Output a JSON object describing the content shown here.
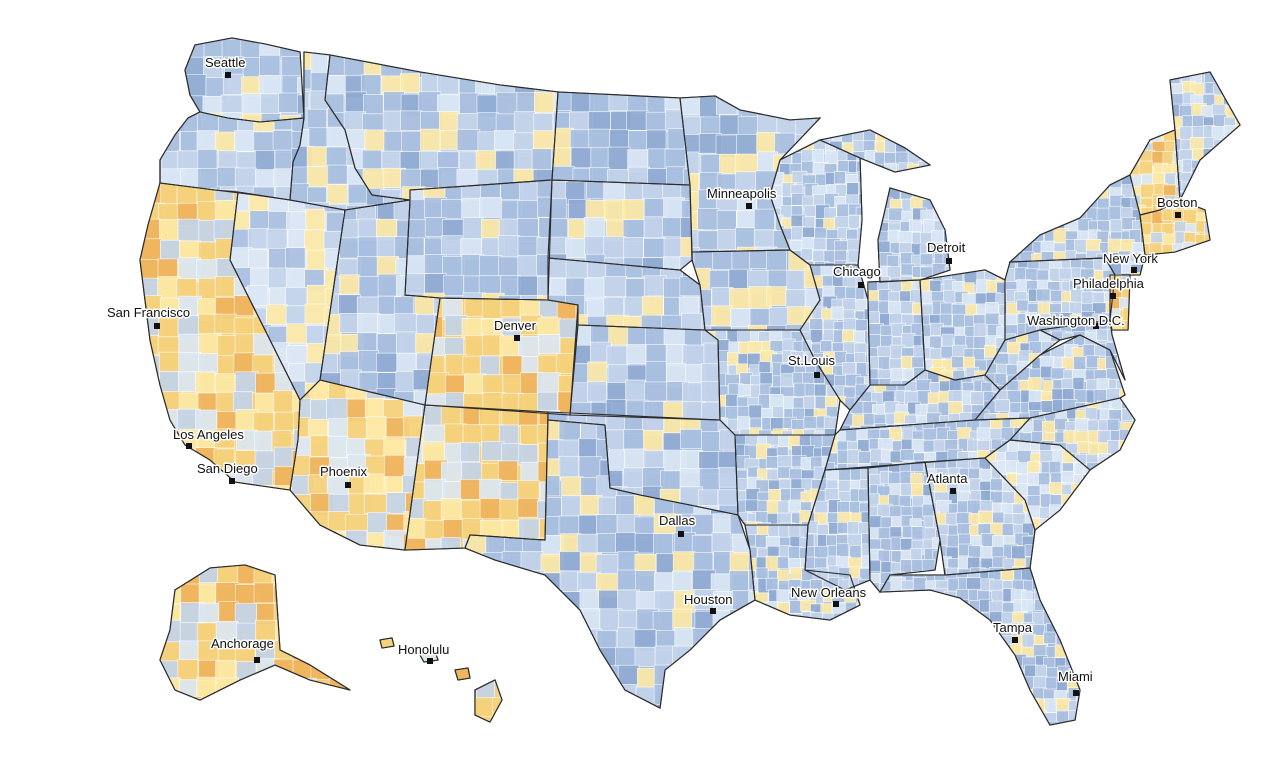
{
  "colors": {
    "very_low": "#dbe7f6",
    "low": "#c2d3ea",
    "mid": "#a9bfdf",
    "high": "#8faad2",
    "pale_yellow": "#fde9a6",
    "yellow": "#f6d17d",
    "orange": "#efb25c",
    "state_border": "#2b2b2b"
  },
  "cities": [
    {
      "id": "seattle",
      "label": "Seattle"
    },
    {
      "id": "san-francisco",
      "label": "San Francisco"
    },
    {
      "id": "los-angeles",
      "label": "Los Angeles"
    },
    {
      "id": "san-diego",
      "label": "San Diego"
    },
    {
      "id": "phoenix",
      "label": "Phoenix"
    },
    {
      "id": "denver",
      "label": "Denver"
    },
    {
      "id": "dallas",
      "label": "Dallas"
    },
    {
      "id": "houston",
      "label": "Houston"
    },
    {
      "id": "minneapolis",
      "label": "Minneapolis"
    },
    {
      "id": "chicago",
      "label": "Chicago"
    },
    {
      "id": "st-louis",
      "label": "St.Louis"
    },
    {
      "id": "detroit",
      "label": "Detroit"
    },
    {
      "id": "new-orleans",
      "label": "New Orleans"
    },
    {
      "id": "atlanta",
      "label": "Atlanta"
    },
    {
      "id": "tampa",
      "label": "Tampa"
    },
    {
      "id": "miami",
      "label": "Miami"
    },
    {
      "id": "washington",
      "label": "Washington D.C."
    },
    {
      "id": "philadelphia",
      "label": "Philadelphia"
    },
    {
      "id": "new-york",
      "label": "New York"
    },
    {
      "id": "boston",
      "label": "Boston"
    },
    {
      "id": "anchorage",
      "label": "Anchorage"
    },
    {
      "id": "honolulu",
      "label": "Honolulu"
    }
  ]
}
